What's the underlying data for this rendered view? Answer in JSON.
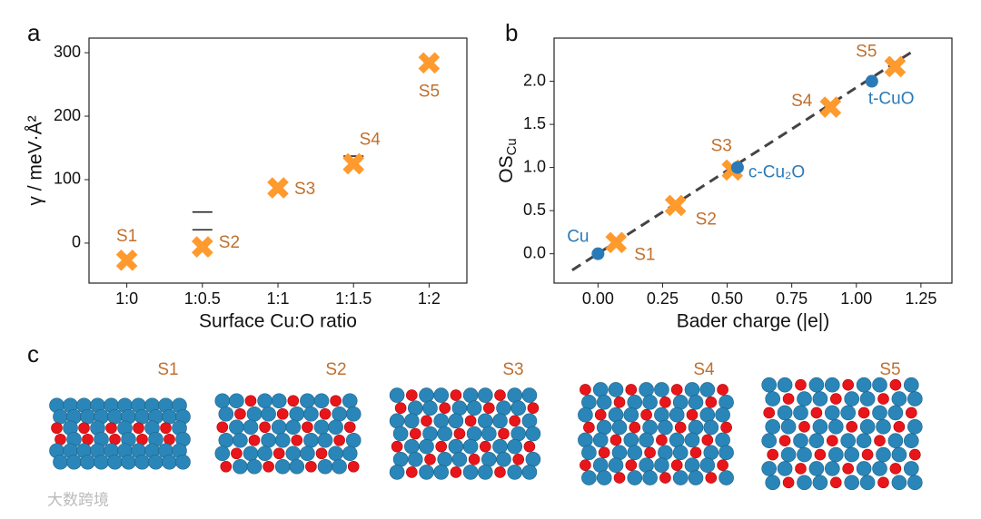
{
  "chart_data": [
    {
      "type": "scatter",
      "panel": "a",
      "x_label": "Surface Cu:O ratio",
      "y_label": "γ / meV·Å²",
      "categories": [
        "1:0",
        "1:0.5",
        "1:1",
        "1:1.5",
        "1:2"
      ],
      "values": [
        -27,
        -6,
        87,
        125,
        284
      ],
      "point_labels": [
        "S1",
        "S2",
        "S3",
        "S4",
        "S5"
      ],
      "color": "#ff9a2e",
      "label_color": "#c0702e",
      "ref_levels": [
        null,
        [
          49,
          21
        ],
        null,
        [
          137
        ],
        null
      ],
      "ylim": [
        -63,
        323
      ],
      "yticks": [
        0,
        100,
        200,
        300
      ]
    },
    {
      "type": "scatter",
      "panel": "b",
      "x_label": "Bader charge (|e|)",
      "y_label": {
        "main": "OS",
        "sub": "Cu"
      },
      "series": [
        {
          "color": "#ff9a2e",
          "label_color": "#c0702e",
          "marker": "x",
          "x": [
            0.07,
            0.3,
            0.52,
            0.9,
            1.15
          ],
          "values": [
            0.13,
            0.56,
            0.97,
            1.7,
            2.17
          ],
          "labels": [
            "S1",
            "S2",
            "S3",
            "S4",
            "S5"
          ]
        },
        {
          "color": "#2a7ab8",
          "label_color": "#2a7ab8",
          "marker": "o",
          "x": [
            0.0,
            0.54,
            1.06
          ],
          "values": [
            0.0,
            1.0,
            2.0
          ],
          "labels": [
            "Cu",
            "c-Cu₂O",
            "t-CuO"
          ]
        }
      ],
      "fit_line": {
        "x": [
          -0.1,
          1.22
        ],
        "values": [
          -0.19,
          2.35
        ],
        "color": "#444"
      },
      "xlim": [
        -0.17,
        1.37
      ],
      "ylim": [
        -0.34,
        2.5
      ],
      "xticks": [
        {
          "value": 0,
          "label": "0.00"
        },
        {
          "value": 0.25,
          "label": "0.25"
        },
        {
          "value": 0.5,
          "label": "0.50"
        },
        {
          "value": 0.75,
          "label": "0.75"
        },
        {
          "value": 1,
          "label": "1.00"
        },
        {
          "value": 1.25,
          "label": "1.25"
        }
      ],
      "yticks": [
        {
          "value": 0,
          "label": "0.0"
        },
        0.5,
        {
          "value": 1,
          "label": "1.0"
        },
        1.5,
        {
          "value": 2,
          "label": "2.0"
        }
      ]
    }
  ],
  "panel_c": {
    "label": "c",
    "structures": [
      "S1",
      "S2",
      "S3",
      "S4",
      "S5"
    ]
  },
  "watermark": "大数跨境"
}
